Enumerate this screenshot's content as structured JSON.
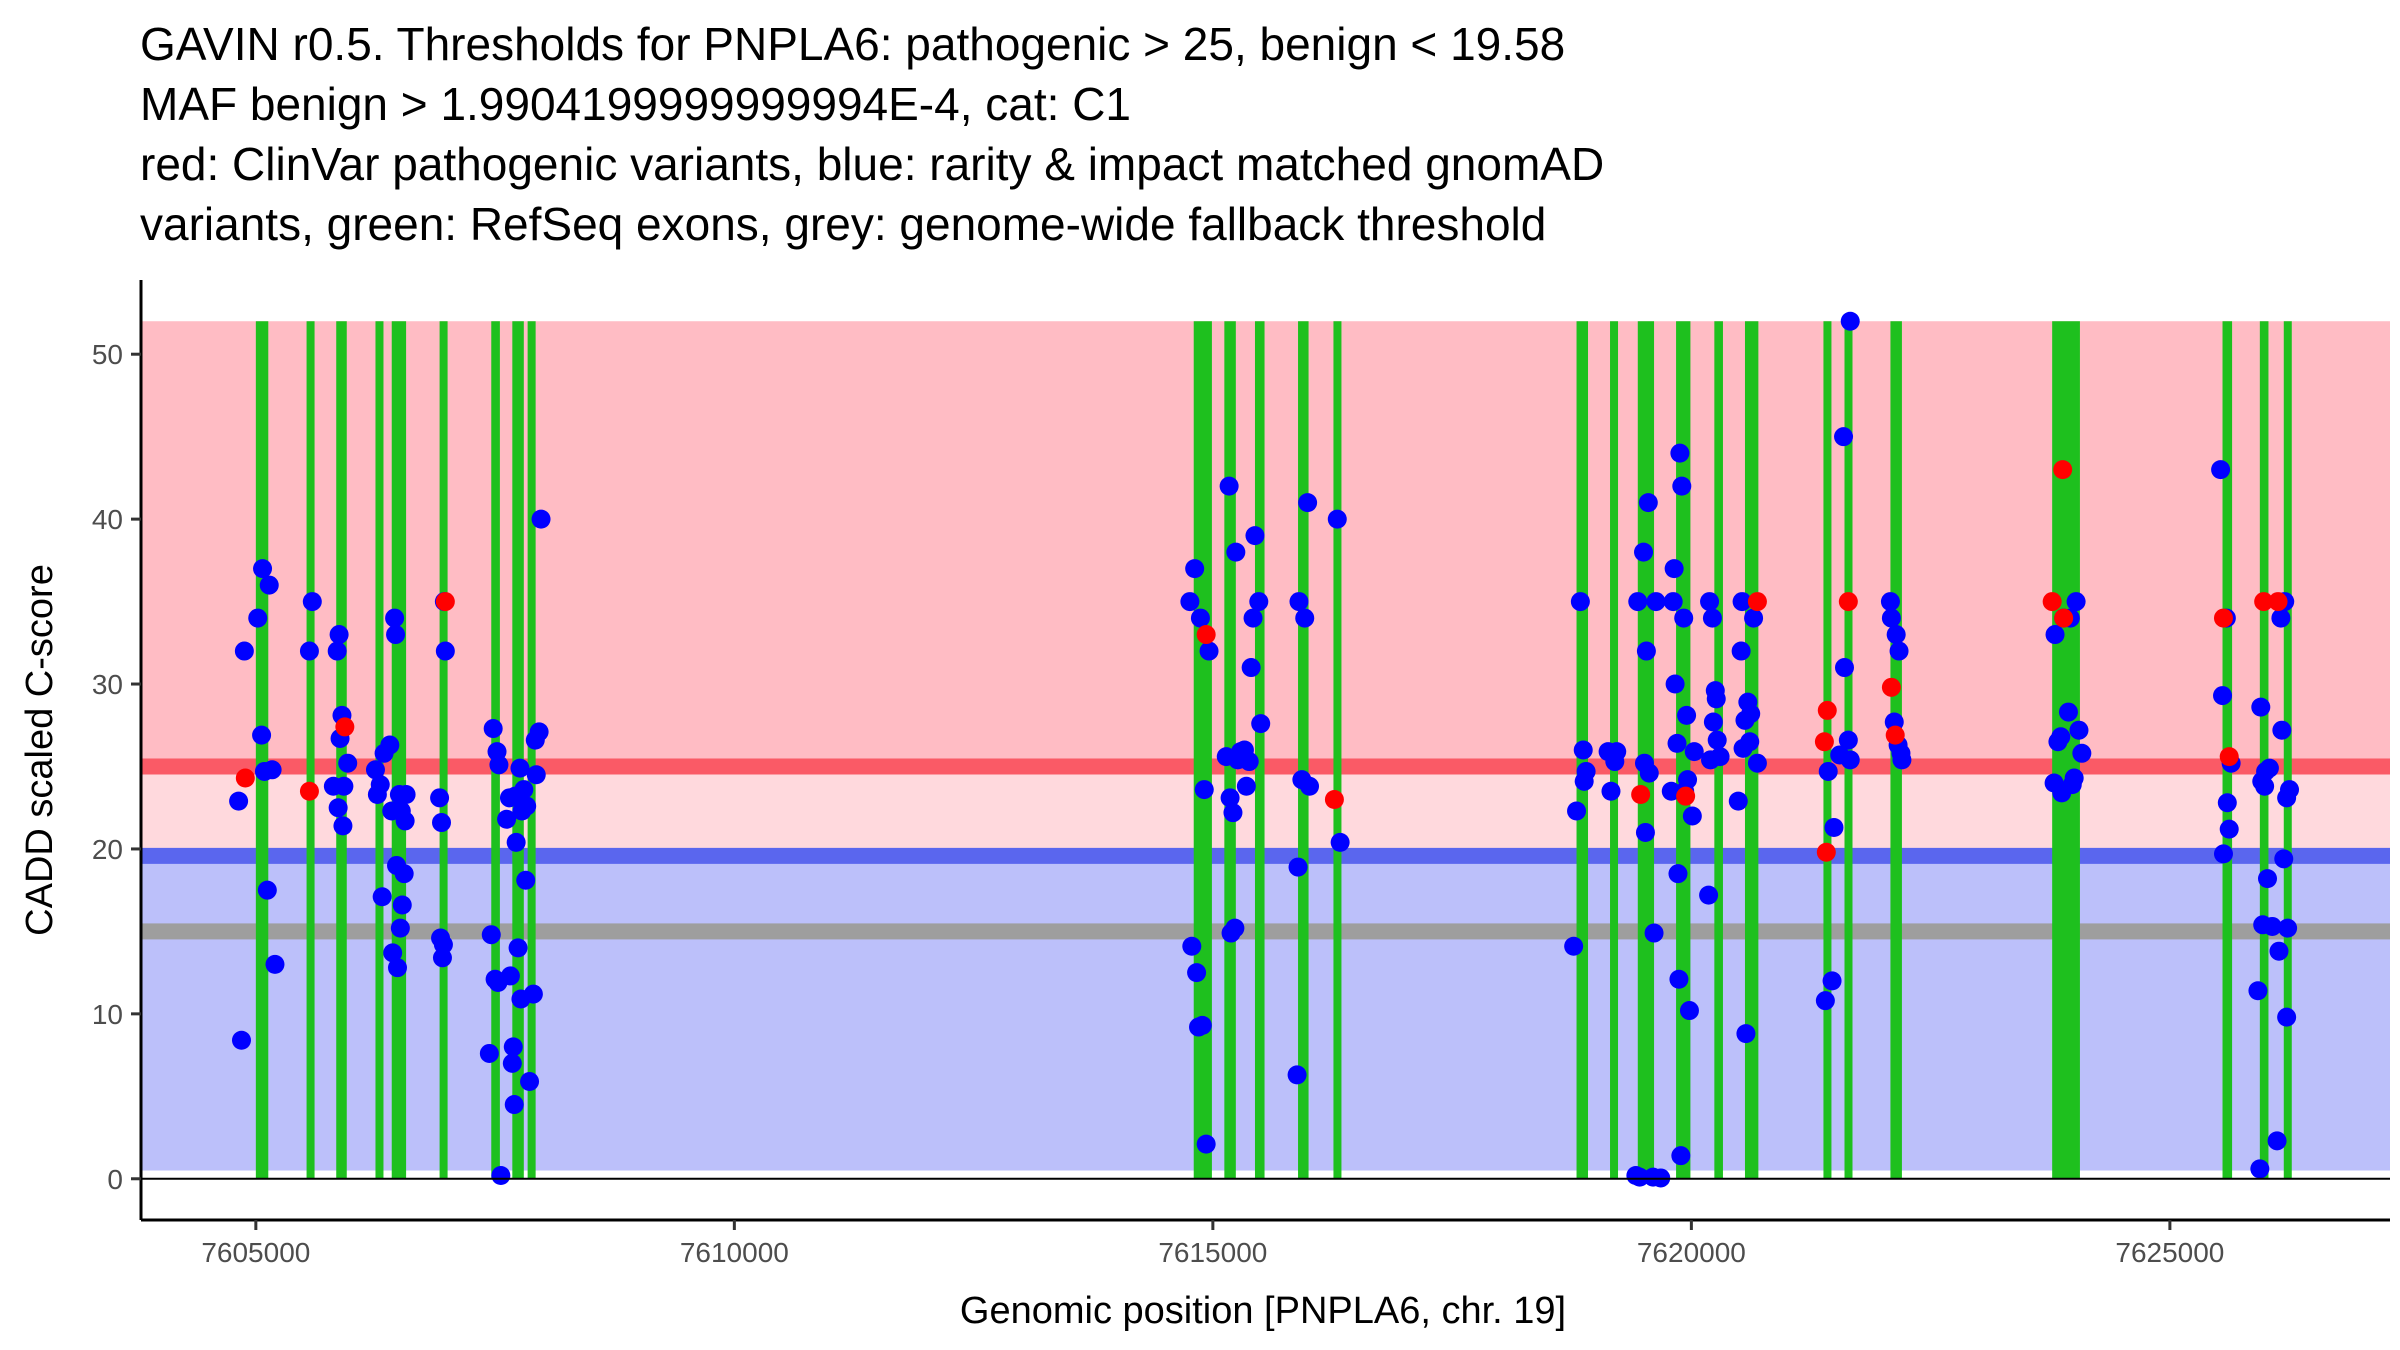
{
  "title_lines": [
    "GAVIN r0.5. Thresholds for PNPLA6: pathogenic > 25, benign < 19.58",
    "MAF benign > 1.9904199999999994E-4, cat: C1",
    "red: ClinVar pathogenic variants, blue: rarity & impact matched gnomAD",
    "variants, green: RefSeq exons, grey: genome-wide fallback threshold"
  ],
  "chart_data": {
    "type": "scatter",
    "xlabel": "Genomic position [PNPLA6, chr. 19]",
    "ylabel": "CADD scaled C-score",
    "xlim": [
      7603800,
      7627300
    ],
    "ylim": [
      -2.5,
      54.5
    ],
    "x_ticks": [
      7605000,
      7610000,
      7615000,
      7620000,
      7625000
    ],
    "y_ticks": [
      0,
      10,
      20,
      30,
      40,
      50
    ],
    "thresholds": {
      "pathogenic": 25,
      "benign": 19.58,
      "genome_wide_fallback": 15
    },
    "bands": [
      {
        "name": "pathogenic zone",
        "from": 25,
        "to": 52,
        "color": "#ffbcc4"
      },
      {
        "name": "intermediate zone",
        "from": 19.58,
        "to": 25,
        "color": "#ffd9dd"
      },
      {
        "name": "benign zone",
        "from": 0.5,
        "to": 19.58,
        "color": "#bcc0fa"
      }
    ],
    "threshold_lines": [
      {
        "name": "pathogenic",
        "value": 25,
        "color": "#fa5a66"
      },
      {
        "name": "benign",
        "value": 19.58,
        "color": "#5a66ee"
      },
      {
        "name": "genome-wide fallback",
        "value": 15,
        "color": "#9e9e9e"
      }
    ],
    "exon_color": "#1ec01e",
    "exon_ymax": 52,
    "exons": [
      [
        7605000,
        7605130
      ],
      [
        7605530,
        7605600
      ],
      [
        7605840,
        7605950
      ],
      [
        7606250,
        7606320
      ],
      [
        7606420,
        7606570
      ],
      [
        7606920,
        7607000
      ],
      [
        7607460,
        7607550
      ],
      [
        7607680,
        7607800
      ],
      [
        7607840,
        7607920
      ],
      [
        7614800,
        7614990
      ],
      [
        7615120,
        7615240
      ],
      [
        7615440,
        7615540
      ],
      [
        7615890,
        7616000
      ],
      [
        7616260,
        7616330
      ],
      [
        7618800,
        7618920
      ],
      [
        7619150,
        7619220
      ],
      [
        7619440,
        7619610
      ],
      [
        7619840,
        7619990
      ],
      [
        7620240,
        7620330
      ],
      [
        7620560,
        7620700
      ],
      [
        7621380,
        7621460
      ],
      [
        7621600,
        7621670
      ],
      [
        7622080,
        7622200
      ],
      [
        7623770,
        7624060
      ],
      [
        7625550,
        7625650
      ],
      [
        7625940,
        7626030
      ],
      [
        7626190,
        7626260
      ]
    ],
    "series": [
      {
        "name": "ClinVar pathogenic variants",
        "color": "#ff0000",
        "points": [
          [
            7604890,
            24.3
          ],
          [
            7605560,
            23.5
          ],
          [
            7605930,
            27.4
          ],
          [
            7606980,
            35
          ],
          [
            7614930,
            33
          ],
          [
            7616270,
            23
          ],
          [
            7619470,
            23.3
          ],
          [
            7619940,
            23.2
          ],
          [
            7620690,
            35
          ],
          [
            7621420,
            28.4
          ],
          [
            7621410,
            19.8
          ],
          [
            7621390,
            26.5
          ],
          [
            7621640,
            35
          ],
          [
            7622090,
            29.8
          ],
          [
            7622130,
            26.9
          ],
          [
            7623770,
            35
          ],
          [
            7623880,
            43
          ],
          [
            7623890,
            34
          ],
          [
            7625560,
            34
          ],
          [
            7625620,
            25.6
          ],
          [
            7625980,
            35
          ],
          [
            7626130,
            35
          ]
        ]
      },
      {
        "name": "rarity & impact matched gnomAD variants",
        "color": "#0000ff",
        "points": [
          [
            7604820,
            22.9
          ],
          [
            7604850,
            8.4
          ],
          [
            7604880,
            32
          ],
          [
            7605020,
            34
          ],
          [
            7605060,
            26.9
          ],
          [
            7605070,
            37
          ],
          [
            7605090,
            24.7
          ],
          [
            7605120,
            17.5
          ],
          [
            7605140,
            36
          ],
          [
            7605170,
            24.8
          ],
          [
            7605200,
            13
          ],
          [
            7605560,
            32
          ],
          [
            7605590,
            35
          ],
          [
            7605810,
            23.8
          ],
          [
            7605850,
            32
          ],
          [
            7605860,
            22.5
          ],
          [
            7605870,
            33
          ],
          [
            7605880,
            26.7
          ],
          [
            7605900,
            28.1
          ],
          [
            7605910,
            21.4
          ],
          [
            7605920,
            23.8
          ],
          [
            7605960,
            25.2
          ],
          [
            7606250,
            24.8
          ],
          [
            7606270,
            23.3
          ],
          [
            7606300,
            23.9
          ],
          [
            7606320,
            17.1
          ],
          [
            7606340,
            25.8
          ],
          [
            7606400,
            26.3
          ],
          [
            7606420,
            22.3
          ],
          [
            7606430,
            13.7
          ],
          [
            7606450,
            34
          ],
          [
            7606460,
            33
          ],
          [
            7606470,
            19
          ],
          [
            7606480,
            12.8
          ],
          [
            7606500,
            23.3
          ],
          [
            7606510,
            15.2
          ],
          [
            7606520,
            22.3
          ],
          [
            7606530,
            16.6
          ],
          [
            7606550,
            18.5
          ],
          [
            7606560,
            21.7
          ],
          [
            7606570,
            23.3
          ],
          [
            7606920,
            23.1
          ],
          [
            7606930,
            14.6
          ],
          [
            7606940,
            21.6
          ],
          [
            7606950,
            13.4
          ],
          [
            7606960,
            14.2
          ],
          [
            7606970,
            35
          ],
          [
            7606980,
            32
          ],
          [
            7607440,
            7.6
          ],
          [
            7607460,
            14.8
          ],
          [
            7607480,
            27.3
          ],
          [
            7607500,
            12.1
          ],
          [
            7607520,
            25.9
          ],
          [
            7607530,
            11.9
          ],
          [
            7607540,
            25.1
          ],
          [
            7607560,
            0.2
          ],
          [
            7607620,
            21.8
          ],
          [
            7607650,
            23.1
          ],
          [
            7607660,
            12.3
          ],
          [
            7607680,
            7
          ],
          [
            7607690,
            8
          ],
          [
            7607700,
            4.5
          ],
          [
            7607710,
            23.2
          ],
          [
            7607720,
            20.4
          ],
          [
            7607740,
            14
          ],
          [
            7607760,
            24.9
          ],
          [
            7607770,
            10.9
          ],
          [
            7607780,
            22.3
          ],
          [
            7607800,
            23.6
          ],
          [
            7607820,
            18.1
          ],
          [
            7607830,
            22.6
          ],
          [
            7607860,
            5.9
          ],
          [
            7607900,
            11.2
          ],
          [
            7607920,
            26.6
          ],
          [
            7607930,
            24.5
          ],
          [
            7607960,
            27.1
          ],
          [
            7607980,
            40
          ],
          [
            7614760,
            35
          ],
          [
            7614780,
            14.1
          ],
          [
            7614810,
            37
          ],
          [
            7614830,
            12.5
          ],
          [
            7614850,
            9.2
          ],
          [
            7614870,
            34
          ],
          [
            7614890,
            9.3
          ],
          [
            7614910,
            23.6
          ],
          [
            7614930,
            2.1
          ],
          [
            7614960,
            32
          ],
          [
            7615140,
            25.6
          ],
          [
            7615170,
            42
          ],
          [
            7615180,
            23.1
          ],
          [
            7615190,
            14.9
          ],
          [
            7615210,
            22.2
          ],
          [
            7615230,
            15.2
          ],
          [
            7615240,
            38
          ],
          [
            7615260,
            25.4
          ],
          [
            7615290,
            25.9
          ],
          [
            7615330,
            26
          ],
          [
            7615350,
            23.8
          ],
          [
            7615380,
            25.3
          ],
          [
            7615400,
            31
          ],
          [
            7615420,
            34
          ],
          [
            7615440,
            39
          ],
          [
            7615480,
            35
          ],
          [
            7615500,
            27.6
          ],
          [
            7615880,
            6.3
          ],
          [
            7615890,
            18.9
          ],
          [
            7615900,
            35
          ],
          [
            7615930,
            24.2
          ],
          [
            7615960,
            34
          ],
          [
            7615990,
            41
          ],
          [
            7616010,
            23.8
          ],
          [
            7616300,
            40
          ],
          [
            7616330,
            20.4
          ],
          [
            7618770,
            14.1
          ],
          [
            7618800,
            22.3
          ],
          [
            7618840,
            35
          ],
          [
            7618870,
            26
          ],
          [
            7618880,
            24.1
          ],
          [
            7618900,
            24.7
          ],
          [
            7619130,
            25.9
          ],
          [
            7619160,
            23.5
          ],
          [
            7619200,
            25.3
          ],
          [
            7619220,
            25.9
          ],
          [
            7619420,
            0.2
          ],
          [
            7619440,
            35
          ],
          [
            7619460,
            0.1
          ],
          [
            7619500,
            38
          ],
          [
            7619510,
            25.2
          ],
          [
            7619520,
            21
          ],
          [
            7619530,
            32
          ],
          [
            7619550,
            41
          ],
          [
            7619560,
            24.6
          ],
          [
            7619600,
            0.1
          ],
          [
            7619610,
            14.9
          ],
          [
            7619630,
            35
          ],
          [
            7619680,
            0.05
          ],
          [
            7619790,
            23.5
          ],
          [
            7619810,
            35
          ],
          [
            7619820,
            37
          ],
          [
            7619830,
            30
          ],
          [
            7619850,
            26.4
          ],
          [
            7619860,
            18.5
          ],
          [
            7619870,
            12.1
          ],
          [
            7619880,
            44
          ],
          [
            7619890,
            1.4
          ],
          [
            7619900,
            42
          ],
          [
            7619920,
            34
          ],
          [
            7619930,
            23.5
          ],
          [
            7619950,
            28.1
          ],
          [
            7619960,
            24.2
          ],
          [
            7619980,
            10.2
          ],
          [
            7620010,
            22
          ],
          [
            7620030,
            25.9
          ],
          [
            7620180,
            17.2
          ],
          [
            7620190,
            35
          ],
          [
            7620200,
            25.4
          ],
          [
            7620220,
            34
          ],
          [
            7620230,
            27.7
          ],
          [
            7620250,
            29.6
          ],
          [
            7620260,
            29.1
          ],
          [
            7620270,
            26.6
          ],
          [
            7620300,
            25.6
          ],
          [
            7620490,
            22.9
          ],
          [
            7620520,
            32
          ],
          [
            7620530,
            35
          ],
          [
            7620540,
            26.1
          ],
          [
            7620560,
            27.8
          ],
          [
            7620570,
            8.8
          ],
          [
            7620590,
            28.9
          ],
          [
            7620610,
            26.5
          ],
          [
            7620620,
            28.2
          ],
          [
            7620650,
            34
          ],
          [
            7620690,
            25.2
          ],
          [
            7621400,
            10.8
          ],
          [
            7621430,
            24.7
          ],
          [
            7621470,
            12
          ],
          [
            7621490,
            21.3
          ],
          [
            7621550,
            25.7
          ],
          [
            7621590,
            45
          ],
          [
            7621600,
            31
          ],
          [
            7621640,
            26.6
          ],
          [
            7621660,
            25.4
          ],
          [
            7621660,
            52
          ],
          [
            7622080,
            35
          ],
          [
            7622090,
            34
          ],
          [
            7622120,
            27.7
          ],
          [
            7622140,
            33
          ],
          [
            7622160,
            26.3
          ],
          [
            7622170,
            32
          ],
          [
            7622190,
            25.8
          ],
          [
            7622200,
            25.4
          ],
          [
            7623790,
            24
          ],
          [
            7623800,
            33
          ],
          [
            7623830,
            26.5
          ],
          [
            7623860,
            26.8
          ],
          [
            7623870,
            23.4
          ],
          [
            7623890,
            34
          ],
          [
            7623940,
            28.3
          ],
          [
            7623960,
            34
          ],
          [
            7623980,
            23.9
          ],
          [
            7624000,
            24.3
          ],
          [
            7624020,
            35
          ],
          [
            7624050,
            27.2
          ],
          [
            7624080,
            25.8
          ],
          [
            7625530,
            43
          ],
          [
            7625550,
            29.3
          ],
          [
            7625560,
            19.7
          ],
          [
            7625590,
            34
          ],
          [
            7625600,
            22.8
          ],
          [
            7625620,
            21.2
          ],
          [
            7625640,
            25.2
          ],
          [
            7625920,
            11.4
          ],
          [
            7625940,
            0.6
          ],
          [
            7625950,
            28.6
          ],
          [
            7625960,
            24.1
          ],
          [
            7625970,
            15.4
          ],
          [
            7625990,
            23.8
          ],
          [
            7626000,
            24.7
          ],
          [
            7626020,
            18.2
          ],
          [
            7626040,
            24.9
          ],
          [
            7626070,
            15.3
          ],
          [
            7626120,
            2.3
          ],
          [
            7626140,
            13.8
          ],
          [
            7626160,
            34
          ],
          [
            7626170,
            27.2
          ],
          [
            7626190,
            19.4
          ],
          [
            7626200,
            35
          ],
          [
            7626220,
            23.1
          ],
          [
            7626230,
            15.2
          ],
          [
            7626250,
            23.6
          ],
          [
            7626220,
            9.8
          ]
        ]
      }
    ]
  }
}
